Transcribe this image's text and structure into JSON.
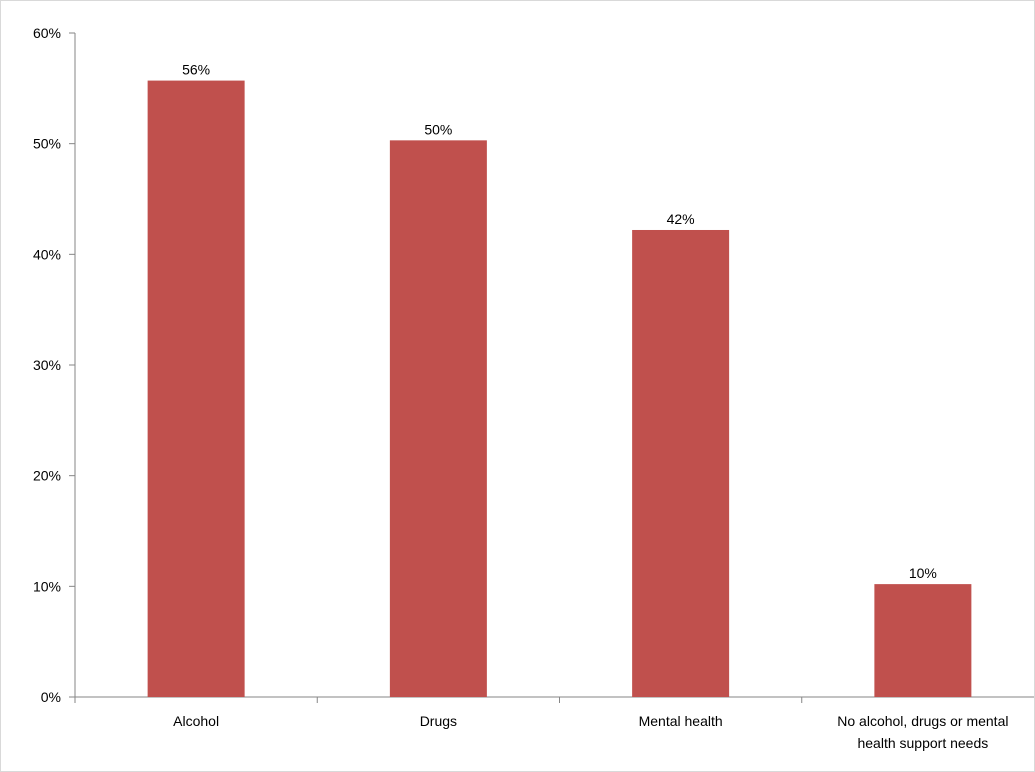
{
  "chart_data": {
    "type": "bar",
    "categories": [
      "Alcohol",
      "Drugs",
      "Mental health",
      "No alcohol, drugs or mental health support needs"
    ],
    "category_label_lines": [
      [
        "Alcohol"
      ],
      [
        "Drugs"
      ],
      [
        "Mental health"
      ],
      [
        "No alcohol, drugs or mental",
        "health support needs"
      ]
    ],
    "values": [
      0.557,
      0.503,
      0.422,
      0.102
    ],
    "data_labels": [
      "56%",
      "50%",
      "42%",
      "10%"
    ],
    "ylim": [
      0,
      0.6
    ],
    "yticks": [
      0,
      0.1,
      0.2,
      0.3,
      0.4,
      0.5,
      0.6
    ],
    "ytick_labels": [
      "0%",
      "10%",
      "20%",
      "30%",
      "40%",
      "50%",
      "60%"
    ],
    "title": "",
    "xlabel": "",
    "ylabel": "",
    "grid": false,
    "legend": "none",
    "colors": {
      "bar": "#c0504d",
      "axis": "#868686"
    }
  }
}
